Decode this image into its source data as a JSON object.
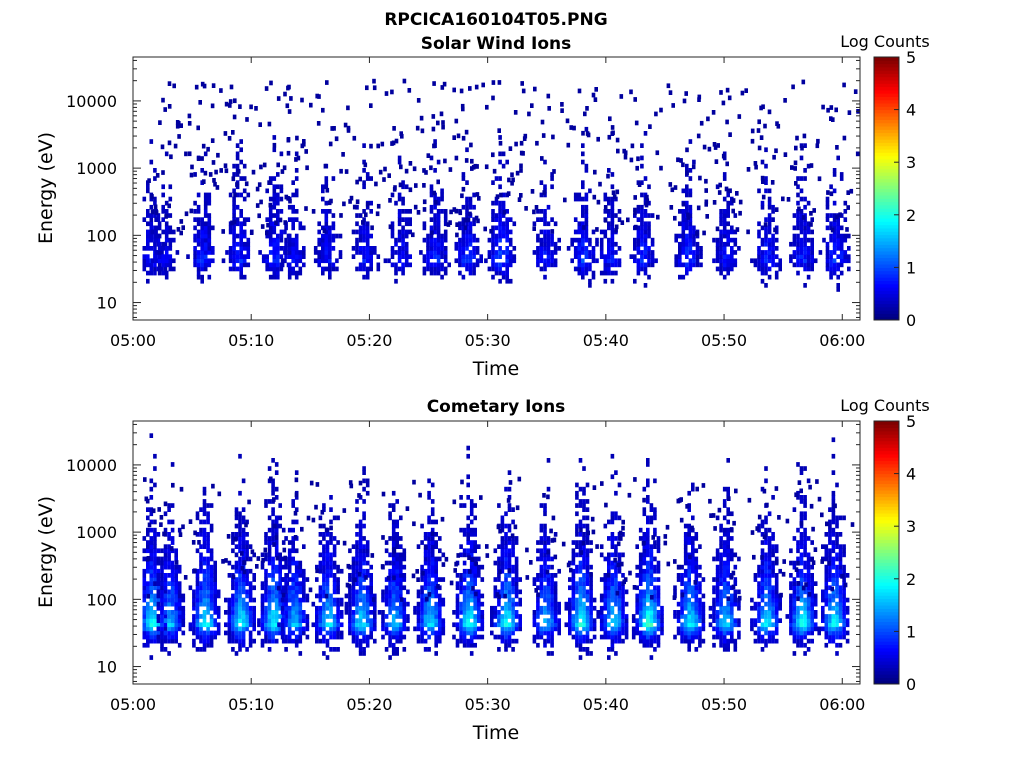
{
  "figure": {
    "title": "RPCICA160104T05.PNG"
  },
  "chart_data": [
    {
      "type": "heatmap",
      "title": "Solar Wind Ions",
      "xlabel": "Time",
      "ylabel": "Energy (eV)",
      "x_ticks": [
        "05:00",
        "05:10",
        "05:20",
        "05:30",
        "05:40",
        "05:50",
        "06:00"
      ],
      "x_range_minutes": [
        0,
        61.5
      ],
      "y_ticks": [
        "10",
        "100",
        "1000",
        "10000"
      ],
      "y_scale": "log",
      "y_range": [
        5.5,
        45000
      ],
      "colorbar": {
        "label": "Log Counts",
        "ticks": [
          "0",
          "1",
          "2",
          "3",
          "4",
          "5"
        ],
        "range": [
          0,
          5
        ]
      },
      "colormap": [
        "#00007f",
        "#0000ff",
        "#007fff",
        "#00ffff",
        "#7fff7f",
        "#ffff00",
        "#ff7f00",
        "#ff0000",
        "#7f0000"
      ],
      "bursts": [
        {
          "t": 1.5,
          "h": 0.7
        },
        {
          "t": 2.5,
          "h": 0.6
        },
        {
          "t": 5.8,
          "h": 0.8
        },
        {
          "t": 8.8,
          "h": 0.8
        },
        {
          "t": 11.9,
          "h": 0.9
        },
        {
          "t": 13.5,
          "h": 0.6
        },
        {
          "t": 16.3,
          "h": 0.7
        },
        {
          "t": 19.5,
          "h": 0.7
        },
        {
          "t": 22.5,
          "h": 0.7
        },
        {
          "t": 25.5,
          "h": 0.8
        },
        {
          "t": 28.2,
          "h": 0.9
        },
        {
          "t": 31.0,
          "h": 1.1
        },
        {
          "t": 34.8,
          "h": 0.7
        },
        {
          "t": 38.0,
          "h": 0.9
        },
        {
          "t": 40.2,
          "h": 0.7
        },
        {
          "t": 43.0,
          "h": 0.8
        },
        {
          "t": 46.8,
          "h": 0.9
        },
        {
          "t": 50.0,
          "h": 0.7
        },
        {
          "t": 53.5,
          "h": 0.8
        },
        {
          "t": 56.5,
          "h": 0.8
        },
        {
          "t": 59.3,
          "h": 0.9
        }
      ]
    },
    {
      "type": "heatmap",
      "title": "Cometary Ions",
      "xlabel": "Time",
      "ylabel": "Energy (eV)",
      "x_ticks": [
        "05:00",
        "05:10",
        "05:20",
        "05:30",
        "05:40",
        "05:50",
        "06:00"
      ],
      "x_range_minutes": [
        0,
        61.5
      ],
      "y_ticks": [
        "10",
        "100",
        "1000",
        "10000"
      ],
      "y_scale": "log",
      "y_range": [
        5.5,
        45000
      ],
      "colorbar": {
        "label": "Log Counts",
        "ticks": [
          "0",
          "1",
          "2",
          "3",
          "4",
          "5"
        ],
        "range": [
          0,
          5
        ]
      },
      "colormap": [
        "#00007f",
        "#0000ff",
        "#007fff",
        "#00ffff",
        "#7fff7f",
        "#ffff00",
        "#ff7f00",
        "#ff0000",
        "#7f0000"
      ],
      "bursts": [
        {
          "t": 1.5,
          "h": 2.0
        },
        {
          "t": 3.0,
          "h": 1.6
        },
        {
          "t": 6.0,
          "h": 1.9
        },
        {
          "t": 9.0,
          "h": 1.9
        },
        {
          "t": 11.8,
          "h": 2.0
        },
        {
          "t": 13.5,
          "h": 1.6
        },
        {
          "t": 16.4,
          "h": 1.8
        },
        {
          "t": 19.2,
          "h": 1.8
        },
        {
          "t": 22.0,
          "h": 1.6
        },
        {
          "t": 25.0,
          "h": 1.8
        },
        {
          "t": 28.3,
          "h": 2.0
        },
        {
          "t": 31.5,
          "h": 2.0
        },
        {
          "t": 34.8,
          "h": 1.6
        },
        {
          "t": 37.8,
          "h": 2.0
        },
        {
          "t": 40.5,
          "h": 1.8
        },
        {
          "t": 43.5,
          "h": 2.2
        },
        {
          "t": 47.0,
          "h": 1.9
        },
        {
          "t": 50.0,
          "h": 1.7
        },
        {
          "t": 53.5,
          "h": 1.8
        },
        {
          "t": 56.5,
          "h": 2.0
        },
        {
          "t": 59.2,
          "h": 1.9
        }
      ]
    }
  ]
}
